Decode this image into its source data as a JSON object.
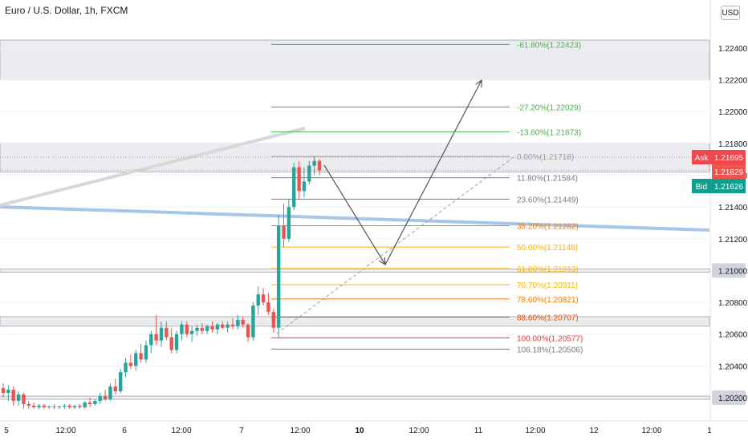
{
  "header": {
    "title": "Euro / U.S. Dollar, 1h, FXCM",
    "currency_button": "USD"
  },
  "quotes": {
    "ask_label": "Ask",
    "ask_value": "1.21695",
    "bid_label": "Bid",
    "bid_value": "1.21626",
    "last_value": "1.21629"
  },
  "colors": {
    "ask": "#f0474c",
    "bid": "#0e9f8e",
    "last": "#ef5350",
    "up_candle": "#26a69a",
    "down_candle": "#ef5350",
    "trendline_blue": "#a8c5ec"
  },
  "chart_data": {
    "type": "candlestick",
    "title": "Euro / U.S. Dollar, 1h, FXCM",
    "xlabel": "",
    "ylabel": "",
    "ylim": [
      1.2013,
      1.2255
    ],
    "x_ticks": [
      "5",
      "12:00",
      "6",
      "12:00",
      "7",
      "12:00",
      "10",
      "12:00",
      "11",
      "12:00",
      "12",
      "12:00",
      "1"
    ],
    "y_ticks": [
      "1.20200",
      "1.20400",
      "1.20600",
      "1.20800",
      "1.21000",
      "1.21200",
      "1.21400",
      "1.21600",
      "1.21800",
      "1.22000",
      "1.22200",
      "1.22400"
    ],
    "highlighted_price": "1.21000",
    "highlighted_price_low": "1.20200",
    "fib_levels": [
      {
        "ratio": "-61.80%",
        "price": "1.22423",
        "color": "#4caf50"
      },
      {
        "ratio": "-27.20%",
        "price": "1.22029",
        "color": "#4caf50"
      },
      {
        "ratio": "-13.60%",
        "price": "1.21873",
        "color": "#4caf50"
      },
      {
        "ratio": "0.00%",
        "price": "1.21718",
        "color": "#9e9e9e"
      },
      {
        "ratio": "11.80%",
        "price": "1.21584",
        "color": "#787b86"
      },
      {
        "ratio": "23.60%",
        "price": "1.21449",
        "color": "#787b86"
      },
      {
        "ratio": "38.20%",
        "price": "1.21282",
        "color": "#f57c00"
      },
      {
        "ratio": "50.00%",
        "price": "1.21148",
        "color": "#ffb300"
      },
      {
        "ratio": "61.80%",
        "price": "1.21013",
        "color": "#ffb300"
      },
      {
        "ratio": "70.70%",
        "price": "1.20911",
        "color": "#ffb300"
      },
      {
        "ratio": "78.60%",
        "price": "1.20821",
        "color": "#f57c00"
      },
      {
        "ratio": "88.60%",
        "price": "1.20707",
        "color": "#e65100"
      },
      {
        "ratio": "100.00%",
        "price": "1.20577",
        "color": "#e53935"
      },
      {
        "ratio": "106.18%",
        "price": "1.20506",
        "color": "#787b86"
      }
    ],
    "zones": [
      {
        "from": 1.222,
        "to": 1.2245
      },
      {
        "from": 1.2162,
        "to": 1.218
      },
      {
        "from": 1.2065,
        "to": 1.2071
      },
      {
        "from": 1.2099,
        "to": 1.2101
      },
      {
        "from": 1.2019,
        "to": 1.2021
      }
    ],
    "candles": [
      {
        "o": 1.2026,
        "h": 1.2029,
        "l": 1.202,
        "c": 1.2023
      },
      {
        "o": 1.2023,
        "h": 1.2028,
        "l": 1.2018,
        "c": 1.2025
      },
      {
        "o": 1.2025,
        "h": 1.2027,
        "l": 1.2015,
        "c": 1.2018
      },
      {
        "o": 1.2018,
        "h": 1.2024,
        "l": 1.2015,
        "c": 1.2022
      },
      {
        "o": 1.2022,
        "h": 1.2023,
        "l": 1.2013,
        "c": 1.2016
      },
      {
        "o": 1.2016,
        "h": 1.2018,
        "l": 1.2013,
        "c": 1.2015
      },
      {
        "o": 1.2015,
        "h": 1.2017,
        "l": 1.2013,
        "c": 1.2014
      },
      {
        "o": 1.2014,
        "h": 1.2016,
        "l": 1.2013,
        "c": 1.2015
      },
      {
        "o": 1.2015,
        "h": 1.2016,
        "l": 1.2013,
        "c": 1.2014
      },
      {
        "o": 1.2014,
        "h": 1.2015,
        "l": 1.2013,
        "c": 1.20145
      },
      {
        "o": 1.20145,
        "h": 1.2016,
        "l": 1.2013,
        "c": 1.2014
      },
      {
        "o": 1.2014,
        "h": 1.2015,
        "l": 1.2013,
        "c": 1.20145
      },
      {
        "o": 1.20145,
        "h": 1.2016,
        "l": 1.2013,
        "c": 1.2015
      },
      {
        "o": 1.2015,
        "h": 1.2016,
        "l": 1.2013,
        "c": 1.2014
      },
      {
        "o": 1.2014,
        "h": 1.20155,
        "l": 1.2013,
        "c": 1.20148
      },
      {
        "o": 1.20148,
        "h": 1.2016,
        "l": 1.2013,
        "c": 1.2014
      },
      {
        "o": 1.2014,
        "h": 1.2018,
        "l": 1.2013,
        "c": 1.2017
      },
      {
        "o": 1.2017,
        "h": 1.202,
        "l": 1.2014,
        "c": 1.2016
      },
      {
        "o": 1.2016,
        "h": 1.2019,
        "l": 1.2015,
        "c": 1.2018
      },
      {
        "o": 1.2018,
        "h": 1.2023,
        "l": 1.2016,
        "c": 1.2021
      },
      {
        "o": 1.2021,
        "h": 1.2025,
        "l": 1.2018,
        "c": 1.2019
      },
      {
        "o": 1.2019,
        "h": 1.2029,
        "l": 1.2018,
        "c": 1.2027
      },
      {
        "o": 1.2027,
        "h": 1.2032,
        "l": 1.2022,
        "c": 1.2024
      },
      {
        "o": 1.2024,
        "h": 1.2038,
        "l": 1.2023,
        "c": 1.2036
      },
      {
        "o": 1.2036,
        "h": 1.2045,
        "l": 1.2033,
        "c": 1.2042
      },
      {
        "o": 1.2042,
        "h": 1.2047,
        "l": 1.2038,
        "c": 1.204
      },
      {
        "o": 1.204,
        "h": 1.205,
        "l": 1.2037,
        "c": 1.2048
      },
      {
        "o": 1.2048,
        "h": 1.2054,
        "l": 1.2042,
        "c": 1.2044
      },
      {
        "o": 1.2044,
        "h": 1.2056,
        "l": 1.2042,
        "c": 1.2053
      },
      {
        "o": 1.2053,
        "h": 1.2062,
        "l": 1.2048,
        "c": 1.206
      },
      {
        "o": 1.206,
        "h": 1.2072,
        "l": 1.2053,
        "c": 1.2056
      },
      {
        "o": 1.2056,
        "h": 1.2068,
        "l": 1.2052,
        "c": 1.2064
      },
      {
        "o": 1.2064,
        "h": 1.2068,
        "l": 1.2056,
        "c": 1.2058
      },
      {
        "o": 1.2058,
        "h": 1.2064,
        "l": 1.2048,
        "c": 1.205
      },
      {
        "o": 1.205,
        "h": 1.2062,
        "l": 1.2048,
        "c": 1.206
      },
      {
        "o": 1.206,
        "h": 1.2068,
        "l": 1.2056,
        "c": 1.2066
      },
      {
        "o": 1.2066,
        "h": 1.2068,
        "l": 1.2058,
        "c": 1.206
      },
      {
        "o": 1.206,
        "h": 1.2065,
        "l": 1.2055,
        "c": 1.2062
      },
      {
        "o": 1.2062,
        "h": 1.2066,
        "l": 1.2059,
        "c": 1.2064
      },
      {
        "o": 1.2064,
        "h": 1.2067,
        "l": 1.206,
        "c": 1.2062
      },
      {
        "o": 1.2062,
        "h": 1.2066,
        "l": 1.206,
        "c": 1.2065
      },
      {
        "o": 1.2065,
        "h": 1.2068,
        "l": 1.2061,
        "c": 1.2063
      },
      {
        "o": 1.2063,
        "h": 1.2067,
        "l": 1.206,
        "c": 1.2066
      },
      {
        "o": 1.2066,
        "h": 1.2068,
        "l": 1.2063,
        "c": 1.2064
      },
      {
        "o": 1.2064,
        "h": 1.2068,
        "l": 1.2061,
        "c": 1.2066
      },
      {
        "o": 1.2066,
        "h": 1.207,
        "l": 1.2063,
        "c": 1.2065
      },
      {
        "o": 1.2065,
        "h": 1.2072,
        "l": 1.2063,
        "c": 1.2069
      },
      {
        "o": 1.2069,
        "h": 1.2071,
        "l": 1.2064,
        "c": 1.2066
      },
      {
        "o": 1.2066,
        "h": 1.2067,
        "l": 1.2055,
        "c": 1.2058
      },
      {
        "o": 1.2058,
        "h": 1.208,
        "l": 1.2056,
        "c": 1.2078
      },
      {
        "o": 1.2078,
        "h": 1.209,
        "l": 1.2072,
        "c": 1.2085
      },
      {
        "o": 1.2085,
        "h": 1.2089,
        "l": 1.2078,
        "c": 1.208
      },
      {
        "o": 1.208,
        "h": 1.2086,
        "l": 1.2072,
        "c": 1.2074
      },
      {
        "o": 1.2074,
        "h": 1.2076,
        "l": 1.2061,
        "c": 1.2064
      },
      {
        "o": 1.2064,
        "h": 1.2135,
        "l": 1.2058,
        "c": 1.2128
      },
      {
        "o": 1.2128,
        "h": 1.2142,
        "l": 1.2115,
        "c": 1.212
      },
      {
        "o": 1.212,
        "h": 1.2145,
        "l": 1.2118,
        "c": 1.214
      },
      {
        "o": 1.214,
        "h": 1.2168,
        "l": 1.2138,
        "c": 1.2165
      },
      {
        "o": 1.2165,
        "h": 1.2169,
        "l": 1.2145,
        "c": 1.215
      },
      {
        "o": 1.215,
        "h": 1.2165,
        "l": 1.2146,
        "c": 1.2156
      },
      {
        "o": 1.2156,
        "h": 1.2169,
        "l": 1.2154,
        "c": 1.2166
      },
      {
        "o": 1.2166,
        "h": 1.2172,
        "l": 1.216,
        "c": 1.2169
      },
      {
        "o": 1.2169,
        "h": 1.217,
        "l": 1.216,
        "c": 1.21629
      }
    ]
  }
}
